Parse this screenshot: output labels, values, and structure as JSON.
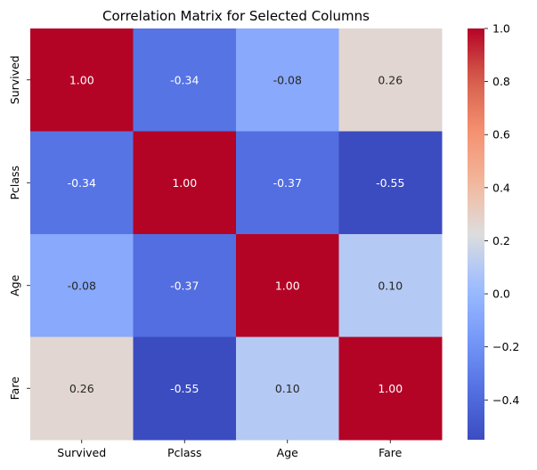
{
  "chart_data": {
    "type": "heatmap",
    "title": "Correlation Matrix for Selected Columns",
    "xlabel": "",
    "ylabel": "",
    "columns": [
      "Survived",
      "Pclass",
      "Age",
      "Fare"
    ],
    "rows": [
      "Survived",
      "Pclass",
      "Age",
      "Fare"
    ],
    "values": [
      [
        1.0,
        -0.34,
        -0.08,
        0.26
      ],
      [
        -0.34,
        1.0,
        -0.37,
        -0.55
      ],
      [
        -0.08,
        -0.37,
        1.0,
        0.1
      ],
      [
        0.26,
        -0.55,
        0.1,
        1.0
      ]
    ],
    "annotations_format": "0.00",
    "colormap": "coolwarm",
    "colorbar": {
      "range": [
        -0.55,
        1.0
      ],
      "ticks": [
        -0.4,
        -0.2,
        0.0,
        0.2,
        0.4,
        0.6,
        0.8,
        1.0
      ],
      "tick_labels": [
        "−0.4",
        "−0.2",
        "0.0",
        "0.2",
        "0.4",
        "0.6",
        "0.8",
        "1.0"
      ]
    },
    "grid": false
  }
}
